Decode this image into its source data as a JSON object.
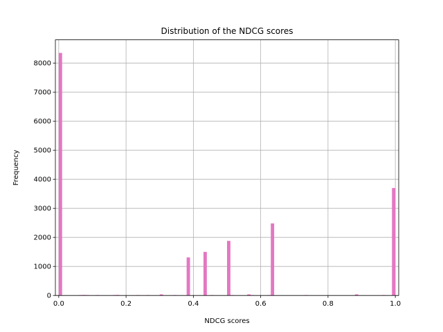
{
  "chart_data": {
    "type": "bar",
    "title": "Distribution of the NDCG scores",
    "xlabel": "NDCG scores",
    "ylabel": "Frequency",
    "xlim": [
      -0.01,
      1.01
    ],
    "ylim": [
      0,
      8800
    ],
    "grid": true,
    "bar_width": 0.01,
    "color": "#e377c2",
    "x_ticks": [
      0.0,
      0.2,
      0.4,
      0.6,
      0.8,
      1.0
    ],
    "x_tick_labels": [
      "0.0",
      "0.2",
      "0.4",
      "0.6",
      "0.8",
      "1.0"
    ],
    "y_ticks": [
      0,
      1000,
      2000,
      3000,
      4000,
      5000,
      6000,
      7000,
      8000
    ],
    "y_tick_labels": [
      "0",
      "1000",
      "2000",
      "3000",
      "4000",
      "5000",
      "6000",
      "7000",
      "8000"
    ],
    "bins": [
      {
        "x": 0.005,
        "value": 8350
      },
      {
        "x": 0.065,
        "value": 15
      },
      {
        "x": 0.075,
        "value": 20
      },
      {
        "x": 0.085,
        "value": 15
      },
      {
        "x": 0.115,
        "value": 15
      },
      {
        "x": 0.165,
        "value": 15
      },
      {
        "x": 0.175,
        "value": 20
      },
      {
        "x": 0.235,
        "value": 15
      },
      {
        "x": 0.265,
        "value": 15
      },
      {
        "x": 0.305,
        "value": 40
      },
      {
        "x": 0.345,
        "value": 15
      },
      {
        "x": 0.385,
        "value": 1310
      },
      {
        "x": 0.435,
        "value": 1500
      },
      {
        "x": 0.455,
        "value": 15
      },
      {
        "x": 0.505,
        "value": 1880
      },
      {
        "x": 0.515,
        "value": 15
      },
      {
        "x": 0.565,
        "value": 40
      },
      {
        "x": 0.575,
        "value": 15
      },
      {
        "x": 0.625,
        "value": 15
      },
      {
        "x": 0.635,
        "value": 2480
      },
      {
        "x": 0.735,
        "value": 15
      },
      {
        "x": 0.885,
        "value": 40
      },
      {
        "x": 0.965,
        "value": 15
      },
      {
        "x": 0.995,
        "value": 3700
      }
    ]
  }
}
